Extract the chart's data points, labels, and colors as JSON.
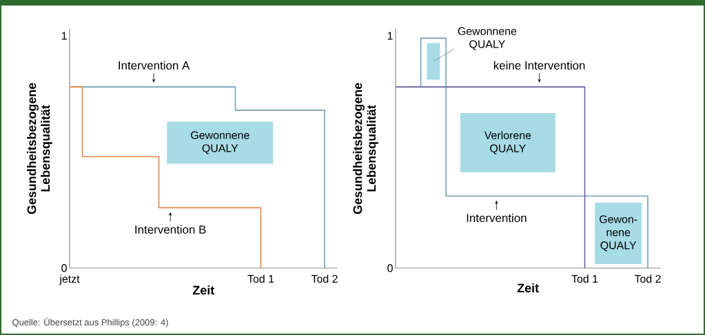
{
  "chart_data": [
    {
      "type": "step",
      "xlabel": "Zeit",
      "ylabel": "Gesundheitsbezogene Lebensqualität",
      "categories": [
        "jetzt",
        null,
        null,
        null,
        null,
        null,
        null,
        null,
        null,
        null,
        null,
        null,
        null,
        null,
        null,
        "Tod 1",
        null,
        null,
        null,
        null,
        "Tod 2"
      ],
      "ylim": [
        0,
        1.03
      ],
      "yticks": [
        0,
        1
      ],
      "series": [
        {
          "name": "Intervention A",
          "color": "#6e9fb8",
          "values": [
            0.78,
            0.78,
            0.78,
            0.78,
            0.78,
            0.78,
            0.78,
            0.78,
            0.78,
            0.78,
            0.78,
            0.78,
            0.78,
            0.68,
            0.68,
            0.68,
            0.68,
            0.68,
            0.68,
            0.68,
            0
          ]
        },
        {
          "name": "Intervention B",
          "color": "#e8864a",
          "values": [
            0.78,
            0.48,
            0.48,
            0.48,
            0.48,
            0.48,
            0.48,
            0.26,
            0.26,
            0.26,
            0.26,
            0.26,
            0.26,
            0.26,
            0.26,
            0,
            null,
            null,
            null,
            null,
            null
          ]
        }
      ],
      "annotations": [
        "Gewonnene QUALY",
        "Quelle: Übersetzt aus Phillips (2009: 4)"
      ]
    },
    {
      "type": "step",
      "xlabel": "Zeit",
      "ylabel": "Gesundheitsbezogene Lebensqualität",
      "categories": [
        null,
        null,
        null,
        null,
        null,
        null,
        null,
        null,
        null,
        null,
        null,
        null,
        null,
        null,
        null,
        "Tod 1",
        null,
        null,
        null,
        null,
        "Tod 2"
      ],
      "ylim": [
        0,
        1.03
      ],
      "yticks": [
        0,
        1
      ],
      "series": [
        {
          "name": "Intervention",
          "color": "#6e9fb8",
          "values": [
            null,
            0.78,
            0.99,
            0.99,
            0.31,
            0.31,
            0.31,
            0.31,
            0.31,
            0.31,
            0.31,
            0.31,
            0.31,
            0.31,
            0.31,
            0.31,
            0.31,
            0.31,
            0.31,
            0.31,
            0
          ]
        },
        {
          "name": "keine Intervention",
          "color": "#6e5c9e",
          "values": [
            0.78,
            0.78,
            0.78,
            0.78,
            0.78,
            0.78,
            0.78,
            0.78,
            0.78,
            0.78,
            0.78,
            0.78,
            0.78,
            0.78,
            0.78,
            0,
            null,
            null,
            null,
            null,
            null
          ]
        }
      ],
      "annotations": [
        "Gewonnene QUALY",
        "Verlorene QUALY",
        "Gewon-nene QUALY"
      ]
    }
  ]
}
